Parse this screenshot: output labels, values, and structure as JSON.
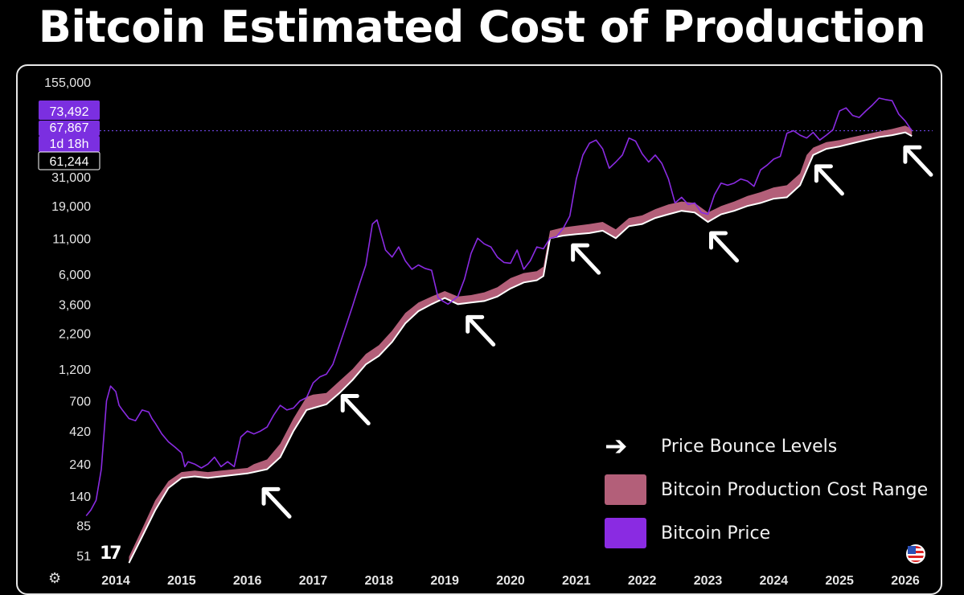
{
  "page": {
    "title": "Bitcoin Estimated Cost of Production"
  },
  "colors": {
    "price": "#8a2be2",
    "band": "#b35f79",
    "background": "#000000"
  },
  "price_labels": [
    {
      "text": "73,492",
      "bg": "#7b2fe0"
    },
    {
      "text": "67,867",
      "bg": "#7b2fe0"
    },
    {
      "text": "1d 18h",
      "bg": "#7b2fe0"
    },
    {
      "text": "61,244",
      "bg": "#000000"
    }
  ],
  "legend": {
    "bounce_label": "Price Bounce Levels",
    "band_label": "Bitcoin Production Cost Range",
    "price_label": "Bitcoin Price"
  },
  "icons": {
    "tv_logo": "tradingview-logo",
    "gear": "settings-icon",
    "flag": "us-flag-icon",
    "arrow": "arrow-up-left-icon"
  },
  "tv_text": "17",
  "chart_data": {
    "type": "line",
    "y_scale": "log",
    "y_ticks": [
      155000,
      31000,
      19000,
      11000,
      6000,
      3600,
      2200,
      1200,
      700,
      420,
      240,
      140,
      85,
      51
    ],
    "y_tick_labels": [
      "155,000",
      "31,000",
      "19,000",
      "11,000",
      "6,000",
      "3,600",
      "2,200",
      "1,200",
      "700",
      "420",
      "240",
      "140",
      "85",
      "51"
    ],
    "x_ticks": [
      2014,
      2015,
      2016,
      2017,
      2018,
      2019,
      2020,
      2021,
      2022,
      2023,
      2024,
      2025,
      2026
    ],
    "current_price": 67867,
    "series": [
      {
        "name": "Bitcoin Price",
        "x": [
          2013.55,
          2013.62,
          2013.7,
          2013.78,
          2013.86,
          2013.92,
          2014.0,
          2014.05,
          2014.1,
          2014.2,
          2014.3,
          2014.4,
          2014.5,
          2014.55,
          2014.6,
          2014.7,
          2014.8,
          2014.9,
          2015.0,
          2015.05,
          2015.1,
          2015.2,
          2015.3,
          2015.4,
          2015.5,
          2015.6,
          2015.7,
          2015.8,
          2015.9,
          2016.0,
          2016.1,
          2016.2,
          2016.3,
          2016.4,
          2016.5,
          2016.6,
          2016.7,
          2016.8,
          2016.9,
          2017.0,
          2017.1,
          2017.2,
          2017.3,
          2017.4,
          2017.5,
          2017.6,
          2017.7,
          2017.8,
          2017.9,
          2017.97,
          2018.05,
          2018.1,
          2018.2,
          2018.3,
          2018.4,
          2018.5,
          2018.6,
          2018.7,
          2018.8,
          2018.9,
          2018.97,
          2019.05,
          2019.2,
          2019.3,
          2019.4,
          2019.5,
          2019.6,
          2019.7,
          2019.8,
          2019.9,
          2020.0,
          2020.1,
          2020.2,
          2020.3,
          2020.4,
          2020.5,
          2020.6,
          2020.7,
          2020.8,
          2020.9,
          2021.0,
          2021.1,
          2021.2,
          2021.3,
          2021.4,
          2021.5,
          2021.6,
          2021.7,
          2021.8,
          2021.9,
          2022.0,
          2022.1,
          2022.2,
          2022.3,
          2022.4,
          2022.5,
          2022.6,
          2022.7,
          2022.8,
          2022.9,
          2023.0,
          2023.1,
          2023.2,
          2023.3,
          2023.4,
          2023.5,
          2023.6,
          2023.7,
          2023.8,
          2023.9,
          2024.0,
          2024.1,
          2024.2,
          2024.3,
          2024.4,
          2024.5,
          2024.6,
          2024.7,
          2024.8,
          2024.9,
          2025.0,
          2025.1,
          2025.2,
          2025.3,
          2025.4,
          2025.5,
          2025.6,
          2025.7,
          2025.8,
          2025.9,
          2026.0,
          2026.1
        ],
        "y": [
          100,
          110,
          130,
          220,
          700,
          900,
          820,
          650,
          600,
          520,
          500,
          600,
          580,
          520,
          480,
          400,
          350,
          320,
          290,
          230,
          250,
          240,
          225,
          240,
          270,
          230,
          250,
          230,
          380,
          420,
          400,
          420,
          450,
          550,
          650,
          600,
          620,
          700,
          740,
          950,
          1050,
          1100,
          1300,
          1800,
          2500,
          3500,
          5000,
          7000,
          14000,
          15000,
          11000,
          9000,
          8000,
          9500,
          7500,
          6500,
          7000,
          6600,
          6400,
          4000,
          3800,
          3600,
          4100,
          5500,
          8500,
          11000,
          10000,
          9500,
          8000,
          7300,
          7200,
          9000,
          6500,
          7500,
          9500,
          9200,
          11000,
          11300,
          13000,
          16000,
          30000,
          45000,
          55000,
          58000,
          50000,
          36000,
          40000,
          45000,
          60000,
          57000,
          46000,
          40000,
          45000,
          39000,
          30000,
          20000,
          22000,
          19500,
          20000,
          17000,
          16500,
          23000,
          28000,
          27000,
          28000,
          30000,
          29000,
          26500,
          35000,
          38000,
          42000,
          44000,
          65000,
          68000,
          63000,
          60000,
          66000,
          58000,
          63000,
          69000,
          95000,
          100000,
          88000,
          85000,
          95000,
          105000,
          118000,
          115000,
          113000,
          90000,
          80000,
          67867
        ]
      },
      {
        "name": "Bitcoin Production Cost Range",
        "x": [
          2014.2,
          2014.4,
          2014.6,
          2014.8,
          2015.0,
          2015.2,
          2015.4,
          2015.6,
          2015.8,
          2016.0,
          2016.1,
          2016.3,
          2016.5,
          2016.7,
          2016.9,
          2017.0,
          2017.2,
          2017.4,
          2017.6,
          2017.8,
          2018.0,
          2018.2,
          2018.4,
          2018.6,
          2018.8,
          2019.0,
          2019.2,
          2019.4,
          2019.6,
          2019.8,
          2020.0,
          2020.2,
          2020.4,
          2020.5,
          2020.6,
          2020.8,
          2021.0,
          2021.2,
          2021.4,
          2021.6,
          2021.8,
          2022.0,
          2022.2,
          2022.4,
          2022.6,
          2022.8,
          2023.0,
          2023.2,
          2023.4,
          2023.6,
          2023.8,
          2024.0,
          2024.2,
          2024.4,
          2024.5,
          2024.6,
          2024.8,
          2025.0,
          2025.2,
          2025.4,
          2025.6,
          2025.8,
          2026.0,
          2026.1
        ],
        "low": [
          45,
          70,
          110,
          160,
          190,
          195,
          190,
          195,
          200,
          205,
          210,
          220,
          270,
          420,
          600,
          620,
          660,
          800,
          1000,
          1300,
          1500,
          1900,
          2600,
          3200,
          3600,
          4000,
          3600,
          3700,
          3800,
          4100,
          4700,
          5200,
          5400,
          5800,
          11000,
          11500,
          11800,
          12000,
          12500,
          11000,
          13500,
          14000,
          15500,
          16500,
          17500,
          17000,
          14500,
          16500,
          17500,
          19000,
          20000,
          21500,
          22000,
          27000,
          35000,
          45000,
          50000,
          52000,
          55000,
          58000,
          61000,
          63000,
          66000,
          62000
        ],
        "high": [
          50,
          80,
          130,
          180,
          210,
          215,
          210,
          215,
          220,
          225,
          240,
          260,
          340,
          520,
          750,
          780,
          800,
          980,
          1200,
          1550,
          1800,
          2300,
          3100,
          3700,
          4100,
          4500,
          4100,
          4200,
          4400,
          4800,
          5600,
          6100,
          6300,
          6800,
          12500,
          13200,
          13600,
          14000,
          14500,
          12800,
          15500,
          16200,
          18000,
          19500,
          20500,
          20000,
          17000,
          19000,
          20500,
          22500,
          24000,
          26000,
          27000,
          33000,
          45000,
          51000,
          56000,
          58000,
          61000,
          64000,
          67000,
          70000,
          74000,
          70000
        ]
      }
    ],
    "bounce_arrows": [
      {
        "x": 2016.2,
        "y": 190
      },
      {
        "x": 2017.4,
        "y": 920
      },
      {
        "x": 2019.3,
        "y": 3500
      },
      {
        "x": 2020.9,
        "y": 11800
      },
      {
        "x": 2023.0,
        "y": 14500
      },
      {
        "x": 2024.6,
        "y": 45000
      },
      {
        "x": 2025.95,
        "y": 62000
      }
    ]
  }
}
